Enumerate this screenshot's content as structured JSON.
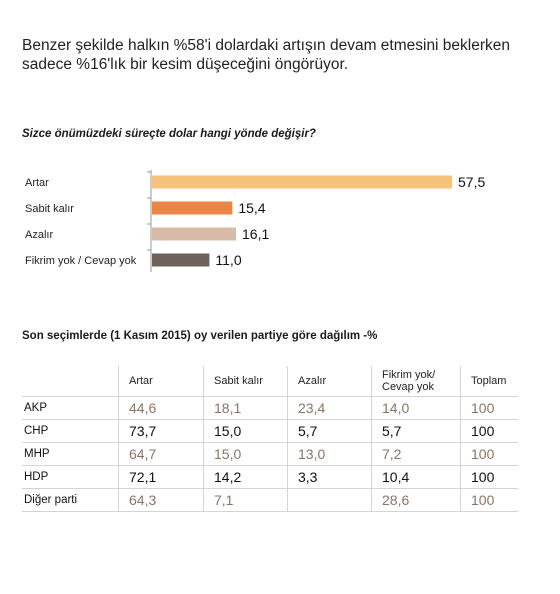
{
  "intro": {
    "line1": "Benzer şekilde halkın %58'i dolardaki artışın devam etmesini beklerken",
    "line2": "sadece %16'lık bir kesim düşeceğini öngörüyor."
  },
  "chart_data": {
    "type": "bar",
    "orientation": "horizontal",
    "title": "Sizce önümüzdeki süreçte dolar hangi yönde değişir?",
    "categories": [
      "Artar",
      "Sabit kalır",
      "Azalır",
      "Fikrim yok / Cevap yok"
    ],
    "values": [
      57.5,
      15.4,
      16.1,
      11.0
    ],
    "value_labels": [
      "57,5",
      "15,4",
      "16,1",
      "11,0"
    ],
    "colors": [
      "#f6c27a",
      "#e98545",
      "#d8bba6",
      "#6e6159"
    ],
    "xlim": [
      0,
      57.5
    ],
    "grid": false,
    "legend": "none"
  },
  "table": {
    "title": "Son seçimlerde (1 Kasım 2015) oy verilen partiye göre dağılım -%",
    "headers": [
      "",
      "Artar",
      "Sabit kalır",
      "Azalır",
      "Fikrim yok/ Cevap yok",
      "Toplam"
    ],
    "rows": [
      {
        "party": "AKP",
        "cells": [
          "44,6",
          "18,1",
          "23,4",
          "14,0",
          "100"
        ],
        "tone": "muted"
      },
      {
        "party": "CHP",
        "cells": [
          "73,7",
          "15,0",
          "5,7",
          "5,7",
          "100"
        ],
        "tone": "dark"
      },
      {
        "party": "MHP",
        "cells": [
          "64,7",
          "15,0",
          "13,0",
          "7,2",
          "100"
        ],
        "tone": "muted"
      },
      {
        "party": "HDP",
        "cells": [
          "72,1",
          "14,2",
          "3,3",
          "10,4",
          "100"
        ],
        "tone": "dark"
      },
      {
        "party": "Diğer parti",
        "cells": [
          "64,3",
          "7,1",
          "",
          "28,6",
          "100"
        ],
        "tone": "muted"
      }
    ]
  }
}
